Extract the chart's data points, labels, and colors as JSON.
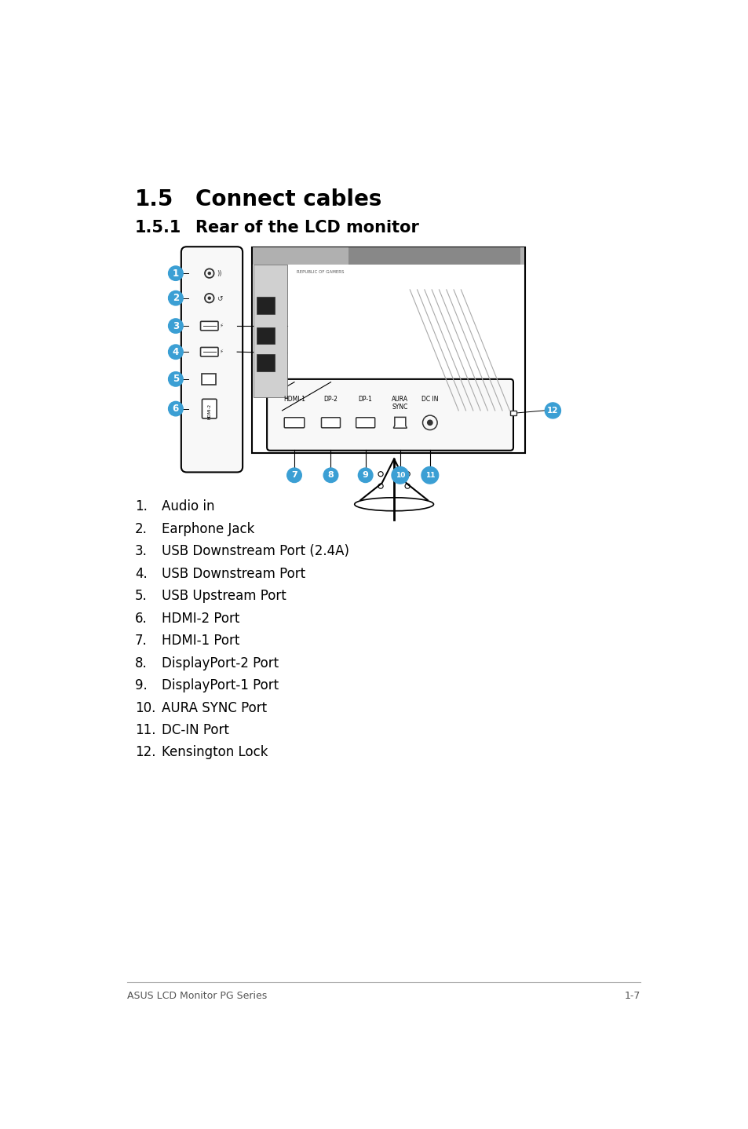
{
  "title1": "1.5",
  "title1_text": "Connect cables",
  "title2": "1.5.1",
  "title2_text": "Rear of the LCD monitor",
  "items": [
    {
      "num": "1.",
      "text": "Audio in"
    },
    {
      "num": "2.",
      "text": "Earphone Jack"
    },
    {
      "num": "3.",
      "text": "USB Downstream Port (2.4A)"
    },
    {
      "num": "4.",
      "text": "USB Downstream Port"
    },
    {
      "num": "5.",
      "text": "USB Upstream Port"
    },
    {
      "num": "6.",
      "text": "HDMI-2 Port"
    },
    {
      "num": "7.",
      "text": "HDMI-1 Port"
    },
    {
      "num": "8.",
      "text": "DisplayPort-2 Port"
    },
    {
      "num": "9.",
      "text": "DisplayPort-1 Port"
    },
    {
      "num": "10.",
      "text": "AURA SYNC Port"
    },
    {
      "num": "11.",
      "text": "DC-IN Port"
    },
    {
      "num": "12.",
      "text": "Kensington Lock"
    }
  ],
  "footer_left": "ASUS LCD Monitor PG Series",
  "footer_right": "1-7",
  "bg_color": "#ffffff",
  "text_color": "#000000",
  "blue_color": "#3b9fd4",
  "strip_bg": "#f8f8f8",
  "panel_bg": "#f8f8f8",
  "mon_bg": "#f0f0f0",
  "dark_gray": "#888888",
  "mid_gray": "#cccccc"
}
